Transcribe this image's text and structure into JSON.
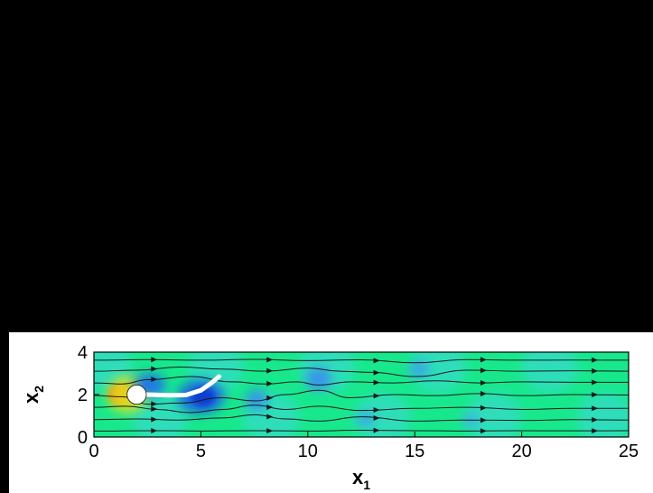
{
  "chart_data": {
    "type": "heatmap",
    "title": "",
    "xlabel": "x",
    "xlabel_sub": "1",
    "ylabel": "x",
    "ylabel_sub": "2",
    "xlim": [
      0,
      25
    ],
    "ylim": [
      0,
      4
    ],
    "xticks": [
      0,
      5,
      10,
      15,
      20,
      25
    ],
    "yticks": [
      0,
      2,
      4
    ],
    "grid": false,
    "legend": "none",
    "obstacle": {
      "shape": "circle",
      "center": [
        2,
        2
      ],
      "radius": 0.45,
      "color": "#ffffff"
    },
    "flag": {
      "color": "#ffffff",
      "points": [
        [
          2.45,
          2.0
        ],
        [
          3.5,
          1.97
        ],
        [
          4.3,
          1.98
        ],
        [
          5.0,
          2.2
        ],
        [
          5.5,
          2.55
        ],
        [
          5.85,
          2.85
        ]
      ]
    },
    "background_color": "#18e88c",
    "features": [
      {
        "x": 1.25,
        "y": 2.0,
        "rx": 0.55,
        "ry": 0.45,
        "value": "high",
        "color": "#ff2a00"
      },
      {
        "x": 1.55,
        "y": 2.0,
        "rx": 0.95,
        "ry": 0.85,
        "value": "elevated",
        "color": "#e8e01a"
      },
      {
        "x": 2.6,
        "y": 2.45,
        "rx": 0.75,
        "ry": 0.55,
        "value": "low",
        "color": "#1b6cf0"
      },
      {
        "x": 5.0,
        "y": 1.9,
        "rx": 1.1,
        "ry": 0.8,
        "value": "low",
        "color": "#1b5ee8"
      },
      {
        "x": 5.1,
        "y": 1.9,
        "rx": 0.55,
        "ry": 0.45,
        "value": "very-low",
        "color": "#0d3ad0"
      },
      {
        "x": 7.6,
        "y": 1.75,
        "rx": 0.5,
        "ry": 0.5,
        "value": "low",
        "color": "#3a8cf0"
      },
      {
        "x": 10.5,
        "y": 2.75,
        "rx": 0.6,
        "ry": 0.55,
        "value": "low",
        "color": "#3a8cf0"
      },
      {
        "x": 12.7,
        "y": 0.85,
        "rx": 0.4,
        "ry": 0.3,
        "value": "low",
        "color": "#3f95f2"
      },
      {
        "x": 15.2,
        "y": 3.2,
        "rx": 0.45,
        "ry": 0.35,
        "value": "low",
        "color": "#3f95f2"
      },
      {
        "x": 17.6,
        "y": 0.8,
        "rx": 0.35,
        "ry": 0.3,
        "value": "low",
        "color": "#4aa0f4"
      }
    ],
    "streamlines_y": [
      0.28,
      0.82,
      1.4,
      1.95,
      2.55,
      3.1,
      3.62
    ],
    "streamlines": [
      {
        "name": "",
        "x": [
          0,
          3,
          5,
          7.5,
          10,
          12.5,
          15,
          17.5,
          20,
          22.5,
          25
        ],
        "y": [
          0.28,
          0.3,
          0.28,
          0.3,
          0.28,
          0.32,
          0.3,
          0.28,
          0.3,
          0.29,
          0.3
        ]
      },
      {
        "name": "",
        "x": [
          0,
          2,
          4,
          6,
          7.5,
          9,
          10.5,
          12.5,
          15,
          17.5,
          20,
          22.5,
          25
        ],
        "y": [
          0.82,
          0.85,
          0.8,
          0.9,
          1.05,
          0.85,
          0.75,
          0.95,
          0.75,
          0.8,
          0.78,
          0.82,
          0.8
        ]
      },
      {
        "name": "",
        "x": [
          0,
          1.5,
          3,
          4.5,
          6,
          7.5,
          9,
          10.5,
          12.5,
          15,
          17.5,
          20,
          22.5,
          25
        ],
        "y": [
          1.4,
          1.45,
          1.3,
          1.15,
          1.3,
          1.5,
          1.3,
          1.45,
          1.25,
          1.35,
          1.4,
          1.3,
          1.35,
          1.35
        ]
      },
      {
        "name": "",
        "x": [
          0,
          1.3,
          2.55,
          4,
          6,
          7.5,
          9,
          10.5,
          12,
          14,
          16,
          18,
          20,
          22.5,
          25
        ],
        "y": [
          1.95,
          1.9,
          1.55,
          1.6,
          1.85,
          1.7,
          2.0,
          2.2,
          1.85,
          2.0,
          1.95,
          2.05,
          1.95,
          2.0,
          1.98
        ]
      },
      {
        "name": "",
        "x": [
          0,
          1.3,
          2.55,
          4.5,
          6.5,
          8,
          9.5,
          10.5,
          12,
          14,
          16,
          18,
          20,
          22.5,
          25
        ],
        "y": [
          2.55,
          2.5,
          2.7,
          2.85,
          2.6,
          2.5,
          2.6,
          2.45,
          2.6,
          2.55,
          2.65,
          2.55,
          2.6,
          2.58,
          2.58
        ]
      },
      {
        "name": "",
        "x": [
          0,
          2,
          4,
          6,
          8,
          10,
          11.5,
          13,
          15,
          17.5,
          20,
          22.5,
          25
        ],
        "y": [
          3.1,
          3.15,
          3.3,
          3.2,
          3.1,
          3.25,
          3.1,
          3.05,
          2.85,
          3.15,
          3.1,
          3.12,
          3.1
        ]
      },
      {
        "name": "",
        "x": [
          0,
          2.5,
          5,
          7.5,
          10,
          12.5,
          15,
          17.5,
          20,
          22.5,
          25
        ],
        "y": [
          3.62,
          3.65,
          3.62,
          3.66,
          3.6,
          3.64,
          3.5,
          3.65,
          3.62,
          3.63,
          3.62
        ]
      }
    ]
  }
}
